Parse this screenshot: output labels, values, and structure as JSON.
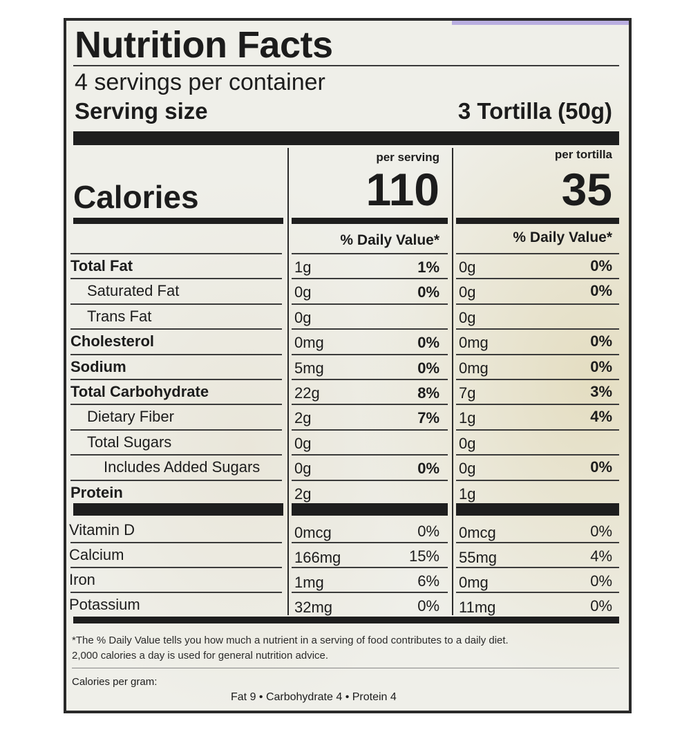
{
  "header": {
    "title": "Nutrition Facts",
    "servings": "4 servings per container",
    "serving_size_label": "Serving size",
    "serving_size_value": "3 Tortilla (50g)"
  },
  "calories": {
    "label": "Calories",
    "per_serving_label": "per serving",
    "per_serving_value": "110",
    "per_tortilla_label": "per tortilla",
    "per_tortilla_value": "35"
  },
  "dv_header": "% Daily Value*",
  "nutrients": [
    {
      "label": "Total Fat",
      "bold": true,
      "indent": 0,
      "s_amt": "1g",
      "s_pct": "1%",
      "t_amt": "0g",
      "t_pct": "0%"
    },
    {
      "label": "Saturated Fat",
      "bold": false,
      "indent": 1,
      "s_amt": "0g",
      "s_pct": "0%",
      "t_amt": "0g",
      "t_pct": "0%"
    },
    {
      "label": "Trans Fat",
      "bold": false,
      "indent": 1,
      "s_amt": "0g",
      "s_pct": "",
      "t_amt": "0g",
      "t_pct": ""
    },
    {
      "label": "Cholesterol",
      "bold": true,
      "indent": 0,
      "s_amt": "0mg",
      "s_pct": "0%",
      "t_amt": "0mg",
      "t_pct": "0%"
    },
    {
      "label": "Sodium",
      "bold": true,
      "indent": 0,
      "s_amt": "5mg",
      "s_pct": "0%",
      "t_amt": "0mg",
      "t_pct": "0%"
    },
    {
      "label": "Total Carbohydrate",
      "bold": true,
      "indent": 0,
      "s_amt": "22g",
      "s_pct": "8%",
      "t_amt": "7g",
      "t_pct": "3%"
    },
    {
      "label": "Dietary Fiber",
      "bold": false,
      "indent": 1,
      "s_amt": "2g",
      "s_pct": "7%",
      "t_amt": "1g",
      "t_pct": "4%"
    },
    {
      "label": "Total Sugars",
      "bold": false,
      "indent": 1,
      "s_amt": "0g",
      "s_pct": "",
      "t_amt": "0g",
      "t_pct": ""
    },
    {
      "label": "Includes Added Sugars",
      "bold": false,
      "indent": 2,
      "s_amt": "0g",
      "s_pct": "0%",
      "t_amt": "0g",
      "t_pct": "0%"
    },
    {
      "label": "Protein",
      "bold": true,
      "indent": 0,
      "s_amt": "2g",
      "s_pct": "",
      "t_amt": "1g",
      "t_pct": ""
    }
  ],
  "vitamins": [
    {
      "label": "Vitamin D",
      "s_amt": "0mcg",
      "s_pct": "0%",
      "t_amt": "0mcg",
      "t_pct": "0%"
    },
    {
      "label": "Calcium",
      "s_amt": "166mg",
      "s_pct": "15%",
      "t_amt": "55mg",
      "t_pct": "4%"
    },
    {
      "label": "Iron",
      "s_amt": "1mg",
      "s_pct": "6%",
      "t_amt": "0mg",
      "t_pct": "0%"
    },
    {
      "label": "Potassium",
      "s_amt": "32mg",
      "s_pct": "0%",
      "t_amt": "11mg",
      "t_pct": "0%"
    }
  ],
  "footnote": {
    "line1": "*The % Daily Value tells you how much a nutrient in a serving of food contributes to a daily diet.",
    "line2": "2,000 calories a day is used for general nutrition advice."
  },
  "calories_per_gram": {
    "label": "Calories per gram:",
    "values": "Fat 9  •  Carbohydrate 4  •  Protein 4"
  }
}
